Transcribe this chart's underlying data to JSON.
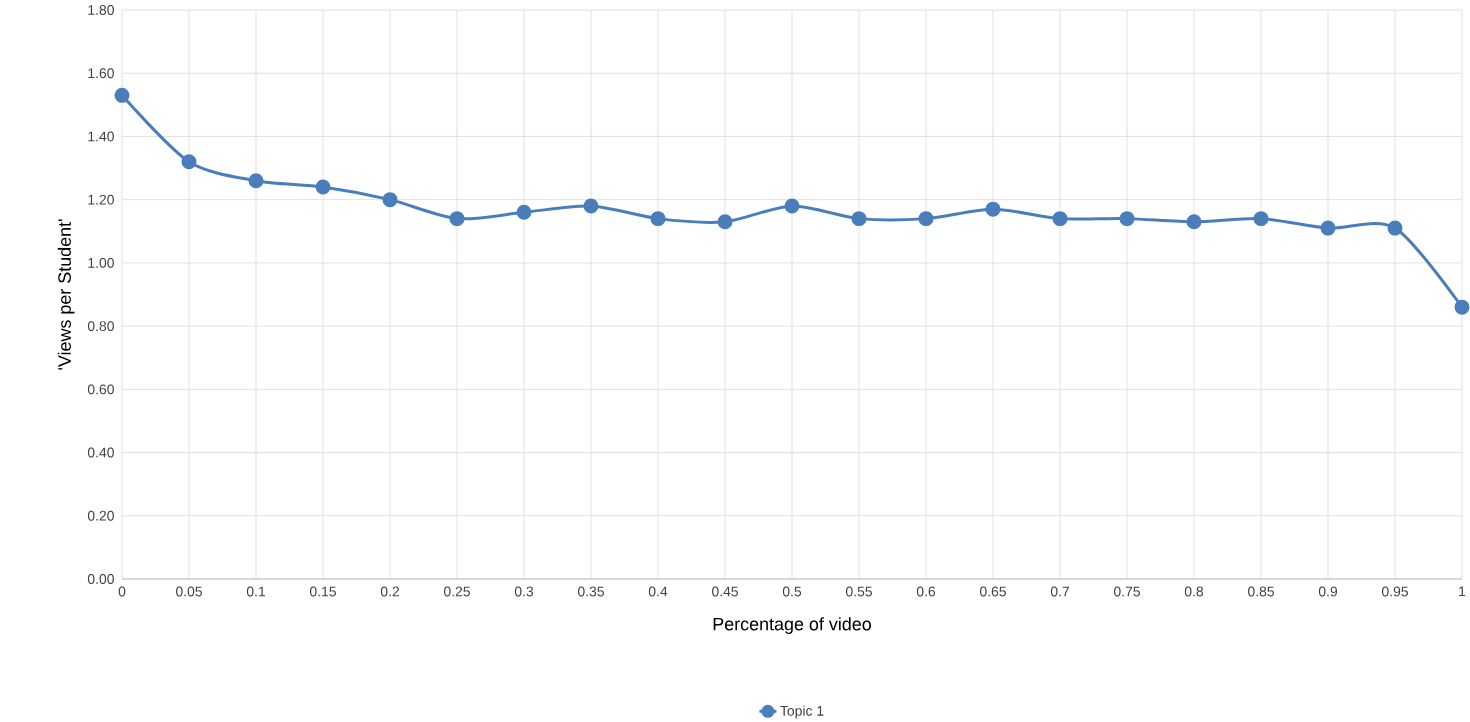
{
  "chart_data": {
    "type": "line",
    "xlabel": "Percentage of video",
    "ylabel": "'Views per Student'",
    "x": [
      0,
      0.05,
      0.1,
      0.15,
      0.2,
      0.25,
      0.3,
      0.35,
      0.4,
      0.45,
      0.5,
      0.55,
      0.6,
      0.65,
      0.7,
      0.75,
      0.8,
      0.85,
      0.9,
      0.95,
      1
    ],
    "series": [
      {
        "name": "Topic 1",
        "color": "#4a7ebb",
        "values": [
          1.53,
          1.32,
          1.26,
          1.24,
          1.2,
          1.14,
          1.16,
          1.18,
          1.14,
          1.13,
          1.18,
          1.14,
          1.14,
          1.17,
          1.14,
          1.14,
          1.13,
          1.14,
          1.11,
          1.11,
          0.86
        ]
      }
    ],
    "xlim": [
      0,
      1
    ],
    "xticks": [
      0,
      0.05,
      0.1,
      0.15,
      0.2,
      0.25,
      0.3,
      0.35,
      0.4,
      0.45,
      0.5,
      0.55,
      0.6,
      0.65,
      0.7,
      0.75,
      0.8,
      0.85,
      0.9,
      0.95,
      1
    ],
    "ylim": [
      0,
      1.8
    ],
    "yticks": [
      {
        "value": 0,
        "label": "0.00"
      },
      {
        "value": 0.2,
        "label": "0.20"
      },
      {
        "value": 0.4,
        "label": "0.40"
      },
      {
        "value": 0.6,
        "label": "0.60"
      },
      {
        "value": 0.8,
        "label": "0.80"
      },
      {
        "value": 1.0,
        "label": "1.00"
      },
      {
        "value": 1.2,
        "label": "1.20"
      },
      {
        "value": 1.4,
        "label": "1.40"
      },
      {
        "value": 1.6,
        "label": "1.60"
      },
      {
        "value": 1.8,
        "label": "1.80"
      }
    ],
    "grid": true,
    "legend": "bottom",
    "marker": "circle",
    "line_style": "solid"
  }
}
